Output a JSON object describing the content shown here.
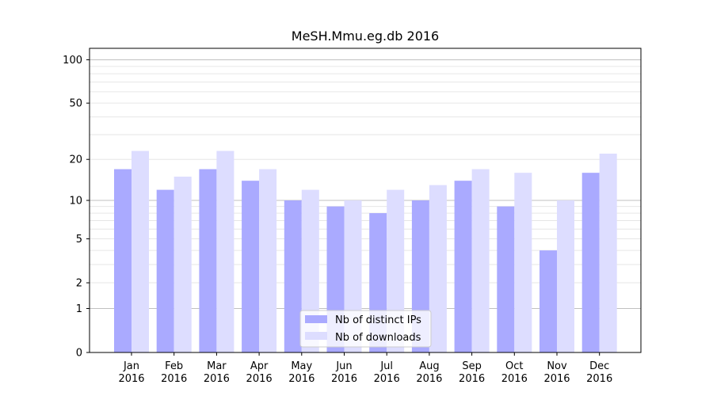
{
  "chart_data": {
    "type": "bar",
    "title": "MeSH.Mmu.eg.db 2016",
    "xlabel": "",
    "ylabel": "",
    "y_scale": "log(1+y)",
    "ylim": [
      0,
      120
    ],
    "y_tick_labels": [
      "0",
      "1",
      "2",
      "5",
      "10",
      "20",
      "50",
      "100"
    ],
    "y_ticks": [
      0,
      1,
      2,
      5,
      10,
      20,
      50,
      100
    ],
    "grid": true,
    "legend_position": "bottom-center",
    "categories": [
      "Jan\n2016",
      "Feb\n2016",
      "Mar\n2016",
      "Apr\n2016",
      "May\n2016",
      "Jun\n2016",
      "Jul\n2016",
      "Aug\n2016",
      "Sep\n2016",
      "Oct\n2016",
      "Nov\n2016",
      "Dec\n2016"
    ],
    "series": [
      {
        "name": "Nb of distinct IPs",
        "color": "#aaaaff",
        "values": [
          17,
          12,
          17,
          14,
          10,
          9,
          8,
          10,
          14,
          9,
          4,
          16
        ]
      },
      {
        "name": "Nb of downloads",
        "color": "#ddddff",
        "values": [
          23,
          15,
          23,
          17,
          12,
          10,
          12,
          13,
          17,
          16,
          10,
          22
        ]
      }
    ]
  }
}
